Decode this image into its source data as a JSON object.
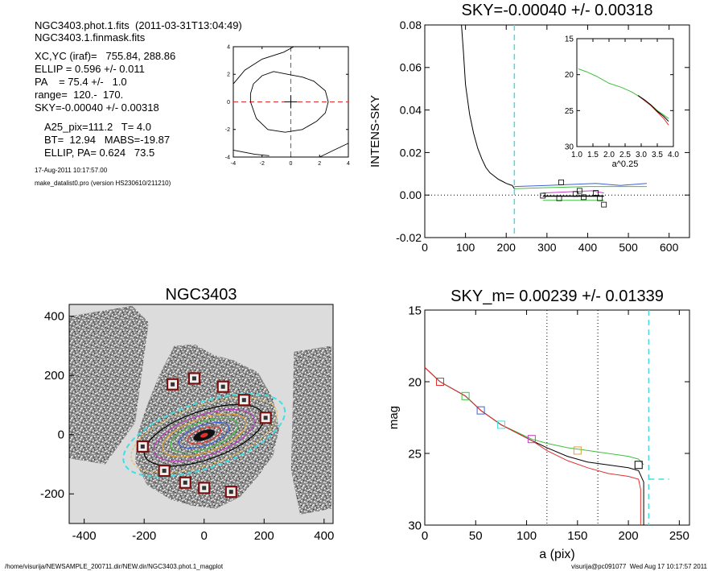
{
  "header": {
    "lines_a": [
      "NGC3403.phot.1.fits  (2011-03-31T13:04:49)",
      "NGC3403.1.finmask.fits"
    ],
    "lines_b": [
      "XC,YC (iraf)=   755.84, 288.86",
      "ELLIP = 0.596 +/- 0.011",
      "PA    = 75.4 +/-   1.0",
      "range=  120.-  170.",
      "SKY=-0.00040 +/- 0.00318"
    ],
    "lines_c": [
      "A25_pix=111.2   T= 4.0",
      "BT=  12.94   MABS=-19.87",
      "ELLIP, PA= 0.624   73.5"
    ],
    "date": "17-Aug-2011 10:17:57.00",
    "program": "make_datalist0.pro (version HS230610/211210)"
  },
  "footer": {
    "path": "/home/visurija/NEWSAMPLE_200711.dir/NEW.dir/NGC3403.phot.1_magplot",
    "user": "visurija@pc091077  Wed Aug 17 10:17:57 2011"
  },
  "colors": {
    "red": "#e03030",
    "green": "#40c040",
    "blue": "#4060d0",
    "cyan": "#40e0e0",
    "magenta": "#c040c0",
    "orange": "#e0a030",
    "gray": "#c8c8c8"
  },
  "chart_data": [
    {
      "id": "center_contour",
      "type": "line",
      "title": "",
      "xlim": [
        -4,
        4
      ],
      "ylim": [
        -4,
        4
      ],
      "xticks": [
        "-4",
        "-2",
        "0",
        "2",
        "4"
      ],
      "yticks": [
        "-4",
        "-2",
        "0",
        "2",
        "4"
      ],
      "crosshair": {
        "x": 0,
        "y": 0
      },
      "contours": [
        [
          [
            -4,
            1.3
          ],
          [
            -3.2,
            2.3
          ],
          [
            -2,
            3.1
          ],
          [
            -0.5,
            3.6
          ],
          [
            0.2,
            4.0
          ]
        ],
        [
          [
            -2.8,
            0.6
          ],
          [
            -2.6,
            1.3
          ],
          [
            -2.0,
            1.9
          ],
          [
            -1.2,
            2.2
          ],
          [
            -0.2,
            2.0
          ],
          [
            0.8,
            1.8
          ],
          [
            1.6,
            1.5
          ],
          [
            2.4,
            0.8
          ],
          [
            2.6,
            0.0
          ],
          [
            2.4,
            -0.8
          ],
          [
            1.8,
            -1.4
          ],
          [
            0.8,
            -2.0
          ],
          [
            -0.4,
            -2.2
          ],
          [
            -1.6,
            -2.0
          ],
          [
            -2.4,
            -1.2
          ],
          [
            -2.8,
            0.0
          ],
          [
            -2.8,
            0.6
          ]
        ],
        [
          [
            -4,
            -3.5
          ],
          [
            -2.5,
            -3.8
          ],
          [
            -1.5,
            -3.9
          ]
        ],
        [
          [
            2.0,
            -4
          ],
          [
            3.0,
            -3.5
          ],
          [
            4,
            -3.0
          ]
        ]
      ]
    },
    {
      "id": "sky_profile",
      "type": "line",
      "title": "SKY=-0.00040 +/- 0.00318",
      "ylabel": "INTENS-SKY",
      "xlabel": "",
      "xlim": [
        0,
        650
      ],
      "ylim": [
        -0.02,
        0.08
      ],
      "xticks": [
        "0",
        "100",
        "200",
        "300",
        "400",
        "500",
        "600"
      ],
      "yticks": [
        "-0.02",
        "0.00",
        "0.02",
        "0.04",
        "0.06",
        "0.08"
      ],
      "cyan_marker_x": 220,
      "zero_line": 0.0,
      "series": [
        {
          "color": "black",
          "points": [
            [
              90,
              0.08
            ],
            [
              95,
              0.067
            ],
            [
              100,
              0.052
            ],
            [
              110,
              0.038
            ],
            [
              120,
              0.029
            ],
            [
              130,
              0.022
            ],
            [
              140,
              0.017
            ],
            [
              150,
              0.013
            ],
            [
              160,
              0.0105
            ],
            [
              170,
              0.009
            ],
            [
              180,
              0.0075
            ],
            [
              190,
              0.0065
            ],
            [
              200,
              0.0055
            ],
            [
              210,
              0.0048
            ],
            [
              215,
              0.0045
            ],
            [
              220,
              0.003
            ]
          ]
        },
        {
          "color": "blue",
          "points": [
            [
              220,
              0.004
            ],
            [
              300,
              0.0045
            ],
            [
              360,
              0.005
            ],
            [
              420,
              0.0055
            ],
            [
              480,
              0.0045
            ],
            [
              545,
              0.0055
            ]
          ]
        },
        {
          "color": "green",
          "points": [
            [
              220,
              0.003
            ],
            [
              300,
              0.0035
            ],
            [
              400,
              0.004
            ],
            [
              545,
              0.004
            ]
          ]
        },
        {
          "color": "magenta",
          "points": [
            [
              290,
              0.001
            ],
            [
              350,
              0.0015
            ],
            [
              410,
              0.002
            ],
            [
              440,
              0.001
            ]
          ]
        },
        {
          "color": "black2",
          "points": [
            [
              290,
              -0.0005
            ],
            [
              440,
              -0.0005
            ]
          ]
        },
        {
          "color": "green2",
          "points": [
            [
              290,
              -0.0025
            ],
            [
              440,
              -0.0025
            ]
          ]
        }
      ],
      "squares": [
        [
          290,
          -0.0003
        ],
        [
          330,
          -0.0015
        ],
        [
          335,
          0.006
        ],
        [
          370,
          0.0005
        ],
        [
          380,
          0.002
        ],
        [
          390,
          -0.001
        ],
        [
          420,
          0.001
        ],
        [
          430,
          -0.0015
        ],
        [
          440,
          -0.0045
        ]
      ],
      "inset": {
        "xlabel": "a^0.25",
        "xlim": [
          1.0,
          4.0
        ],
        "ylim": [
          30,
          15
        ],
        "xticks": [
          "1.0",
          "1.5",
          "2.0",
          "2.5",
          "3.0",
          "3.5",
          "4.0"
        ],
        "yticks": [
          "15",
          "20",
          "25",
          "30"
        ],
        "series": [
          {
            "color": "green",
            "points": [
              [
                1.05,
                19.2
              ],
              [
                1.3,
                19.6
              ],
              [
                1.6,
                20.2
              ],
              [
                2.0,
                21.2
              ],
              [
                2.4,
                21.8
              ],
              [
                2.7,
                22.4
              ],
              [
                3.0,
                23.2
              ],
              [
                3.3,
                24.2
              ],
              [
                3.5,
                25.0
              ],
              [
                3.7,
                25.6
              ],
              [
                3.85,
                26.1
              ]
            ]
          },
          {
            "color": "red",
            "points": [
              [
                2.9,
                22.9
              ],
              [
                3.1,
                23.6
              ],
              [
                3.3,
                24.3
              ],
              [
                3.5,
                25.2
              ],
              [
                3.7,
                26.1
              ],
              [
                3.85,
                27.0
              ]
            ]
          },
          {
            "color": "black",
            "points": [
              [
                2.9,
                22.9
              ],
              [
                3.1,
                23.5
              ],
              [
                3.3,
                24.2
              ],
              [
                3.5,
                25.1
              ],
              [
                3.7,
                25.8
              ],
              [
                3.85,
                26.5
              ]
            ]
          }
        ]
      }
    },
    {
      "id": "galaxy_image",
      "type": "scatter",
      "title": "NGC3403",
      "xlim": [
        -450,
        430
      ],
      "ylim": [
        -300,
        440
      ],
      "xticks": [
        "-400",
        "-200",
        "0",
        "200",
        "400"
      ],
      "yticks": [
        "-200",
        "0",
        "200",
        "400"
      ],
      "masked_stars": [
        [
          -105,
          170
        ],
        [
          -33,
          190
        ],
        [
          63,
          162
        ],
        [
          133,
          117
        ],
        [
          205,
          57
        ],
        [
          -205,
          -40
        ],
        [
          -133,
          -122
        ],
        [
          -63,
          -162
        ],
        [
          0,
          -180
        ],
        [
          90,
          -193
        ]
      ],
      "ellipse_colors": [
        "#40e0e0",
        "#e0c060",
        "#000000",
        "#c040c0",
        "#e0a030",
        "#40c040",
        "#4060d0",
        "#e03030"
      ]
    },
    {
      "id": "mag_profile",
      "type": "line",
      "title": "SKY_m=  0.00239 +/- 0.01339",
      "xlabel": "a (pix)",
      "ylabel": "mag",
      "xlim": [
        0,
        260
      ],
      "ylim": [
        30,
        15
      ],
      "xticks": [
        "0",
        "50",
        "100",
        "150",
        "200",
        "250"
      ],
      "yticks": [
        "15",
        "20",
        "25",
        "30"
      ],
      "range_lines": [
        120,
        170
      ],
      "cyan_marker_x": 220,
      "cyan_dash_level": [
        [
          220,
          26.8
        ],
        [
          240,
          26.8
        ]
      ],
      "series": [
        {
          "color": "green",
          "points": [
            [
              0,
              19.0
            ],
            [
              15,
              20.0
            ],
            [
              40,
              21.0
            ],
            [
              55,
              22.0
            ],
            [
              75,
              23.0
            ],
            [
              105,
              24.0
            ],
            [
              120,
              24.3
            ],
            [
              140,
              24.6
            ],
            [
              160,
              24.8
            ],
            [
              180,
              25.0
            ],
            [
              200,
              25.2
            ],
            [
              210,
              25.4
            ],
            [
              215,
              25.8
            ]
          ]
        },
        {
          "color": "black",
          "points": [
            [
              0,
              19.0
            ],
            [
              15,
              20.0
            ],
            [
              40,
              21.0
            ],
            [
              55,
              22.0
            ],
            [
              75,
              23.0
            ],
            [
              105,
              24.1
            ],
            [
              120,
              24.6
            ],
            [
              140,
              25.2
            ],
            [
              160,
              25.6
            ],
            [
              180,
              25.8
            ],
            [
              200,
              26.0
            ],
            [
              210,
              26.2
            ],
            [
              215,
              27.0
            ],
            [
              215,
              30.0
            ]
          ]
        },
        {
          "color": "red",
          "points": [
            [
              0,
              19.0
            ],
            [
              15,
              20.0
            ],
            [
              40,
              21.0
            ],
            [
              55,
              22.0
            ],
            [
              75,
              23.0
            ],
            [
              105,
              24.1
            ],
            [
              120,
              24.8
            ],
            [
              140,
              25.5
            ],
            [
              160,
              26.0
            ],
            [
              180,
              26.4
            ],
            [
              200,
              26.6
            ],
            [
              210,
              26.8
            ],
            [
              212,
              27.5
            ],
            [
              212,
              30.0
            ]
          ]
        }
      ],
      "squares": [
        {
          "x": 15,
          "y": 20.0,
          "color": "red"
        },
        {
          "x": 40,
          "y": 21.0,
          "color": "green"
        },
        {
          "x": 55,
          "y": 22.0,
          "color": "blue"
        },
        {
          "x": 75,
          "y": 23.0,
          "color": "cyan"
        },
        {
          "x": 105,
          "y": 24.0,
          "color": "magenta"
        },
        {
          "x": 150,
          "y": 24.8,
          "color": "orange"
        },
        {
          "x": 210,
          "y": 25.8,
          "color": "black"
        }
      ]
    }
  ]
}
